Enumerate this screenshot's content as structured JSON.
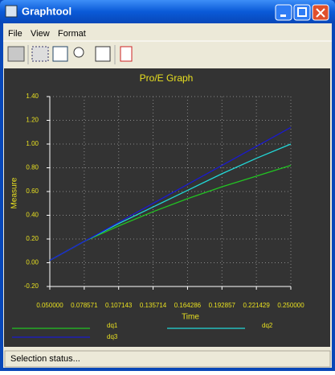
{
  "window": {
    "title": "Graphtool"
  },
  "menu": [
    "File",
    "View",
    "Format"
  ],
  "status": "Selection status...",
  "chart_data": {
    "type": "line",
    "title": "Pro/E Graph",
    "x_label": "Time",
    "y_label": "Measure",
    "x": [
      0.05,
      0.078571,
      0.107143,
      0.135714,
      0.164286,
      0.192857,
      0.221429,
      0.25
    ],
    "series": [
      {
        "name": "dq1",
        "color": "#22c422",
        "values": [
          0.02,
          0.18,
          0.31,
          0.43,
          0.54,
          0.64,
          0.73,
          0.82
        ]
      },
      {
        "name": "dq2",
        "color": "#22d8d8",
        "values": [
          0.02,
          0.18,
          0.33,
          0.47,
          0.61,
          0.75,
          0.88,
          1.0
        ]
      },
      {
        "name": "dq3",
        "color": "#1a1ad0",
        "values": [
          0.02,
          0.18,
          0.34,
          0.5,
          0.66,
          0.82,
          0.98,
          1.14
        ]
      }
    ],
    "xlim": [
      0.05,
      0.25
    ],
    "xticks": [
      {
        "value": 0.05,
        "label": "0.050000"
      },
      {
        "value": 0.078571,
        "label": "0.078571"
      },
      {
        "value": 0.107143,
        "label": "0.107143"
      },
      {
        "value": 0.135714,
        "label": "0.135714"
      },
      {
        "value": 0.164286,
        "label": "0.164286"
      },
      {
        "value": 0.192857,
        "label": "0.192857"
      },
      {
        "value": 0.221429,
        "label": "0.221429"
      },
      {
        "value": 0.25,
        "label": "0.250000"
      }
    ],
    "ylim": [
      -0.2,
      1.4
    ],
    "yticks": [
      {
        "value": -0.2,
        "label": "-0.20"
      },
      {
        "value": 0,
        "label": "0.00"
      },
      {
        "value": 0.2,
        "label": "0.20"
      },
      {
        "value": 0.4,
        "label": "0.40"
      },
      {
        "value": 0.6,
        "label": "0.60"
      },
      {
        "value": 0.8,
        "label": "0.80"
      },
      {
        "value": 1.0,
        "label": "1.00"
      },
      {
        "value": 1.2,
        "label": "1.20"
      },
      {
        "value": 1.4,
        "label": "1.40"
      }
    ],
    "grid": true
  }
}
